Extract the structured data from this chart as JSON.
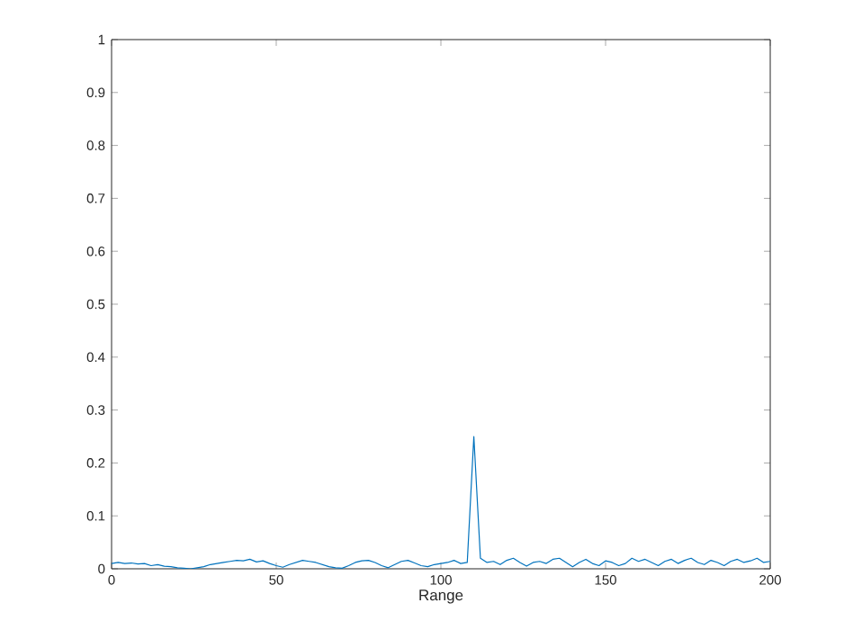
{
  "chart_data": {
    "type": "line",
    "xlabel": "Range",
    "xlim": [
      0,
      200
    ],
    "ylim": [
      0,
      1
    ],
    "xticks": [
      0,
      50,
      100,
      150,
      200
    ],
    "yticks": [
      0,
      0.1,
      0.2,
      0.3,
      0.4,
      0.5,
      0.6,
      0.7,
      0.8,
      0.9,
      1
    ],
    "grid": false,
    "marker": "none",
    "line_style": "solid",
    "series": [
      {
        "color": "#0072bd",
        "x": [
          0,
          2,
          4,
          6,
          8,
          10,
          12,
          14,
          16,
          18,
          20,
          22,
          24,
          26,
          28,
          30,
          32,
          34,
          36,
          38,
          40,
          42,
          44,
          46,
          48,
          50,
          52,
          54,
          56,
          58,
          60,
          62,
          64,
          66,
          68,
          70,
          72,
          74,
          76,
          78,
          80,
          82,
          84,
          86,
          88,
          90,
          92,
          94,
          96,
          98,
          100,
          102,
          104,
          106,
          108,
          110,
          112,
          114,
          116,
          118,
          120,
          122,
          124,
          126,
          128,
          130,
          132,
          134,
          136,
          138,
          140,
          142,
          144,
          146,
          148,
          150,
          152,
          154,
          156,
          158,
          160,
          162,
          164,
          166,
          168,
          170,
          172,
          174,
          176,
          178,
          180,
          182,
          184,
          186,
          188,
          190,
          192,
          194,
          196,
          198,
          200
        ],
        "values": [
          0.01,
          0.012,
          0.01,
          0.011,
          0.009,
          0.01,
          0.006,
          0.008,
          0.005,
          0.004,
          0.002,
          0.001,
          0.0,
          0.002,
          0.004,
          0.008,
          0.01,
          0.012,
          0.014,
          0.016,
          0.015,
          0.018,
          0.013,
          0.015,
          0.01,
          0.006,
          0.003,
          0.008,
          0.012,
          0.016,
          0.014,
          0.012,
          0.008,
          0.004,
          0.002,
          0.001,
          0.006,
          0.012,
          0.015,
          0.016,
          0.012,
          0.006,
          0.002,
          0.008,
          0.014,
          0.016,
          0.011,
          0.006,
          0.004,
          0.008,
          0.01,
          0.012,
          0.016,
          0.01,
          0.012,
          0.25,
          0.02,
          0.012,
          0.014,
          0.008,
          0.016,
          0.02,
          0.012,
          0.005,
          0.012,
          0.014,
          0.01,
          0.018,
          0.02,
          0.012,
          0.004,
          0.012,
          0.018,
          0.01,
          0.006,
          0.015,
          0.012,
          0.006,
          0.01,
          0.02,
          0.014,
          0.018,
          0.012,
          0.006,
          0.014,
          0.018,
          0.01,
          0.016,
          0.02,
          0.012,
          0.008,
          0.016,
          0.012,
          0.006,
          0.014,
          0.018,
          0.012,
          0.015,
          0.02,
          0.012,
          0.014
        ]
      }
    ]
  }
}
